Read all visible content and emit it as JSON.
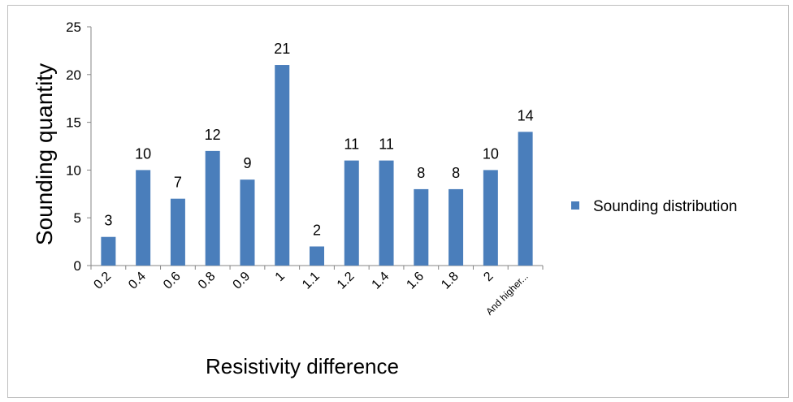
{
  "chart_data": {
    "type": "bar",
    "title": "",
    "xlabel": "Resistivity difference",
    "ylabel": "Sounding quantity",
    "categories": [
      "0.2",
      "0.4",
      "0.6",
      "0.8",
      "0.9",
      "1",
      "1.1",
      "1.2",
      "1.4",
      "1.6",
      "1.8",
      "2",
      "And higher..."
    ],
    "series": [
      {
        "name": "Sounding distribution",
        "values": [
          3,
          10,
          7,
          12,
          9,
          21,
          2,
          11,
          11,
          8,
          8,
          10,
          14
        ],
        "color": "#4a7ebb"
      }
    ],
    "ylim": [
      0,
      25
    ],
    "yticks": [
      "0",
      "5",
      "10",
      "15",
      "20",
      "25"
    ],
    "grid": false,
    "legend": "right",
    "data_labels": true
  }
}
